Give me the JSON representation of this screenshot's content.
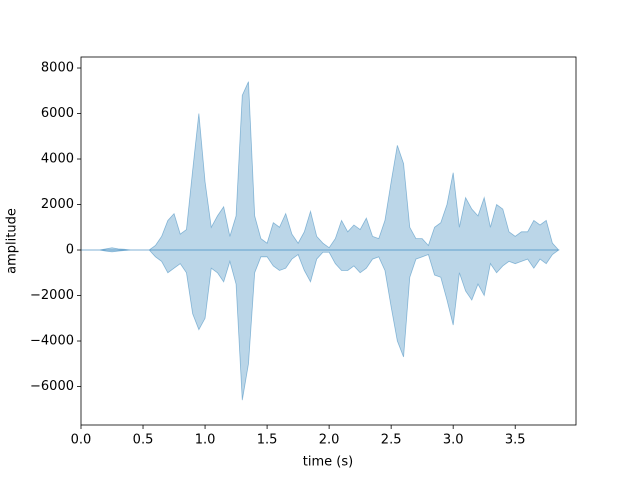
{
  "chart_data": {
    "type": "area",
    "xlabel": "time (s)",
    "ylabel": "amplitude",
    "x": [
      0,
      0.05,
      0.1,
      0.15,
      0.2,
      0.25,
      0.3,
      0.35,
      0.4,
      0.45,
      0.5,
      0.55,
      0.6,
      0.65,
      0.7,
      0.75,
      0.8,
      0.85,
      0.9,
      0.95,
      1.0,
      1.05,
      1.1,
      1.15,
      1.2,
      1.25,
      1.3,
      1.35,
      1.4,
      1.45,
      1.5,
      1.55,
      1.6,
      1.65,
      1.7,
      1.75,
      1.8,
      1.85,
      1.9,
      1.95,
      2.0,
      2.05,
      2.1,
      2.15,
      2.2,
      2.25,
      2.3,
      2.35,
      2.4,
      2.45,
      2.5,
      2.55,
      2.6,
      2.65,
      2.7,
      2.75,
      2.8,
      2.85,
      2.9,
      2.95,
      3.0,
      3.05,
      3.1,
      3.15,
      3.2,
      3.25,
      3.3,
      3.35,
      3.4,
      3.45,
      3.5,
      3.55,
      3.6,
      3.65,
      3.7,
      3.75,
      3.8,
      3.85
    ],
    "series": [
      {
        "color": "#1f77b4",
        "values": [
          0,
          0,
          0,
          0,
          50,
          100,
          50,
          30,
          0,
          0,
          0,
          0,
          200,
          600,
          1300,
          1600,
          700,
          900,
          3500,
          6000,
          3000,
          1000,
          1500,
          1900,
          600,
          1500,
          6800,
          7400,
          1500,
          500,
          300,
          1200,
          1000,
          1600,
          700,
          300,
          800,
          1700,
          600,
          300,
          100,
          500,
          1300,
          800,
          1100,
          900,
          1400,
          600,
          500,
          1300,
          3000,
          4600,
          3800,
          1000,
          500,
          500,
          200,
          1000,
          1200,
          2000,
          3400,
          1000,
          2300,
          1800,
          1500,
          2300,
          1000,
          2000,
          1800,
          800,
          600,
          800,
          800,
          1300,
          1100,
          1300,
          300,
          0
        ]
      },
      {
        "color": "#1f77b4",
        "values": [
          0,
          0,
          0,
          0,
          -50,
          -80,
          -50,
          -20,
          0,
          0,
          0,
          0,
          -300,
          -500,
          -1000,
          -800,
          -600,
          -1000,
          -2800,
          -3500,
          -3000,
          -800,
          -1000,
          -1400,
          -500,
          -1500,
          -6600,
          -5000,
          -1000,
          -300,
          -300,
          -700,
          -900,
          -800,
          -400,
          -200,
          -900,
          -1400,
          -400,
          -100,
          -100,
          -600,
          -900,
          -900,
          -700,
          -1000,
          -800,
          -400,
          -300,
          -900,
          -2500,
          -4000,
          -4700,
          -1200,
          -400,
          -300,
          -200,
          -1100,
          -1200,
          -2200,
          -3300,
          -1000,
          -1800,
          -2200,
          -1500,
          -2000,
          -600,
          -1000,
          -700,
          -500,
          -600,
          -500,
          -400,
          -800,
          -400,
          -600,
          -200,
          0
        ]
      }
    ],
    "xlim": [
      0,
      3.99
    ],
    "ylim": [
      -7692,
      8484
    ],
    "xticks": [
      {
        "value": 0,
        "label": "0.0"
      },
      0.5,
      {
        "value": 1,
        "label": "1.0"
      },
      1.5,
      {
        "value": 2,
        "label": "2.0"
      },
      2.5,
      {
        "value": 3,
        "label": "3.0"
      },
      3.5
    ],
    "yticks": [
      {
        "value": -6000,
        "label": "−6000"
      },
      {
        "value": -4000,
        "label": "−4000"
      },
      {
        "value": -2000,
        "label": "−2000"
      },
      0,
      2000,
      4000,
      6000,
      8000
    ],
    "grid": false
  }
}
